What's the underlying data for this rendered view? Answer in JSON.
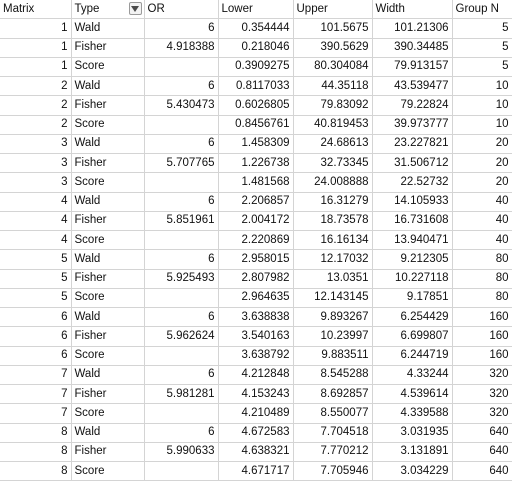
{
  "headers": {
    "matrix": "Matrix",
    "type": "Type",
    "or": "OR",
    "lower": "Lower",
    "upper": "Upper",
    "width": "Width",
    "group_n": "Group N"
  },
  "filter_icon": "dropdown-arrow-icon",
  "rows": [
    {
      "matrix": "1",
      "type": "Wald",
      "or": "6",
      "lower": "0.354444",
      "upper": "101.5675",
      "width": "101.21306",
      "group_n": "5"
    },
    {
      "matrix": "1",
      "type": "Fisher",
      "or": "4.918388",
      "lower": "0.218046",
      "upper": "390.5629",
      "width": "390.34485",
      "group_n": "5"
    },
    {
      "matrix": "1",
      "type": "Score",
      "or": "",
      "lower": "0.3909275",
      "upper": "80.304084",
      "width": "79.913157",
      "group_n": "5"
    },
    {
      "matrix": "2",
      "type": "Wald",
      "or": "6",
      "lower": "0.8117033",
      "upper": "44.35118",
      "width": "43.539477",
      "group_n": "10"
    },
    {
      "matrix": "2",
      "type": "Fisher",
      "or": "5.430473",
      "lower": "0.6026805",
      "upper": "79.83092",
      "width": "79.22824",
      "group_n": "10"
    },
    {
      "matrix": "2",
      "type": "Score",
      "or": "",
      "lower": "0.8456761",
      "upper": "40.819453",
      "width": "39.973777",
      "group_n": "10"
    },
    {
      "matrix": "3",
      "type": "Wald",
      "or": "6",
      "lower": "1.458309",
      "upper": "24.68613",
      "width": "23.227821",
      "group_n": "20"
    },
    {
      "matrix": "3",
      "type": "Fisher",
      "or": "5.707765",
      "lower": "1.226738",
      "upper": "32.73345",
      "width": "31.506712",
      "group_n": "20"
    },
    {
      "matrix": "3",
      "type": "Score",
      "or": "",
      "lower": "1.481568",
      "upper": "24.008888",
      "width": "22.52732",
      "group_n": "20"
    },
    {
      "matrix": "4",
      "type": "Wald",
      "or": "6",
      "lower": "2.206857",
      "upper": "16.31279",
      "width": "14.105933",
      "group_n": "40"
    },
    {
      "matrix": "4",
      "type": "Fisher",
      "or": "5.851961",
      "lower": "2.004172",
      "upper": "18.73578",
      "width": "16.731608",
      "group_n": "40"
    },
    {
      "matrix": "4",
      "type": "Score",
      "or": "",
      "lower": "2.220869",
      "upper": "16.16134",
      "width": "13.940471",
      "group_n": "40"
    },
    {
      "matrix": "5",
      "type": "Wald",
      "or": "6",
      "lower": "2.958015",
      "upper": "12.17032",
      "width": "9.212305",
      "group_n": "80"
    },
    {
      "matrix": "5",
      "type": "Fisher",
      "or": "5.925493",
      "lower": "2.807982",
      "upper": "13.0351",
      "width": "10.227118",
      "group_n": "80"
    },
    {
      "matrix": "5",
      "type": "Score",
      "or": "",
      "lower": "2.964635",
      "upper": "12.143145",
      "width": "9.17851",
      "group_n": "80"
    },
    {
      "matrix": "6",
      "type": "Wald",
      "or": "6",
      "lower": "3.638838",
      "upper": "9.893267",
      "width": "6.254429",
      "group_n": "160"
    },
    {
      "matrix": "6",
      "type": "Fisher",
      "or": "5.962624",
      "lower": "3.540163",
      "upper": "10.23997",
      "width": "6.699807",
      "group_n": "160"
    },
    {
      "matrix": "6",
      "type": "Score",
      "or": "",
      "lower": "3.638792",
      "upper": "9.883511",
      "width": "6.244719",
      "group_n": "160"
    },
    {
      "matrix": "7",
      "type": "Wald",
      "or": "6",
      "lower": "4.212848",
      "upper": "8.545288",
      "width": "4.33244",
      "group_n": "320"
    },
    {
      "matrix": "7",
      "type": "Fisher",
      "or": "5.981281",
      "lower": "4.153243",
      "upper": "8.692857",
      "width": "4.539614",
      "group_n": "320"
    },
    {
      "matrix": "7",
      "type": "Score",
      "or": "",
      "lower": "4.210489",
      "upper": "8.550077",
      "width": "4.339588",
      "group_n": "320"
    },
    {
      "matrix": "8",
      "type": "Wald",
      "or": "6",
      "lower": "4.672583",
      "upper": "7.704518",
      "width": "3.031935",
      "group_n": "640"
    },
    {
      "matrix": "8",
      "type": "Fisher",
      "or": "5.990633",
      "lower": "4.638321",
      "upper": "7.770212",
      "width": "3.131891",
      "group_n": "640"
    },
    {
      "matrix": "8",
      "type": "Score",
      "or": "",
      "lower": "4.671717",
      "upper": "7.705946",
      "width": "3.034229",
      "group_n": "640"
    }
  ]
}
